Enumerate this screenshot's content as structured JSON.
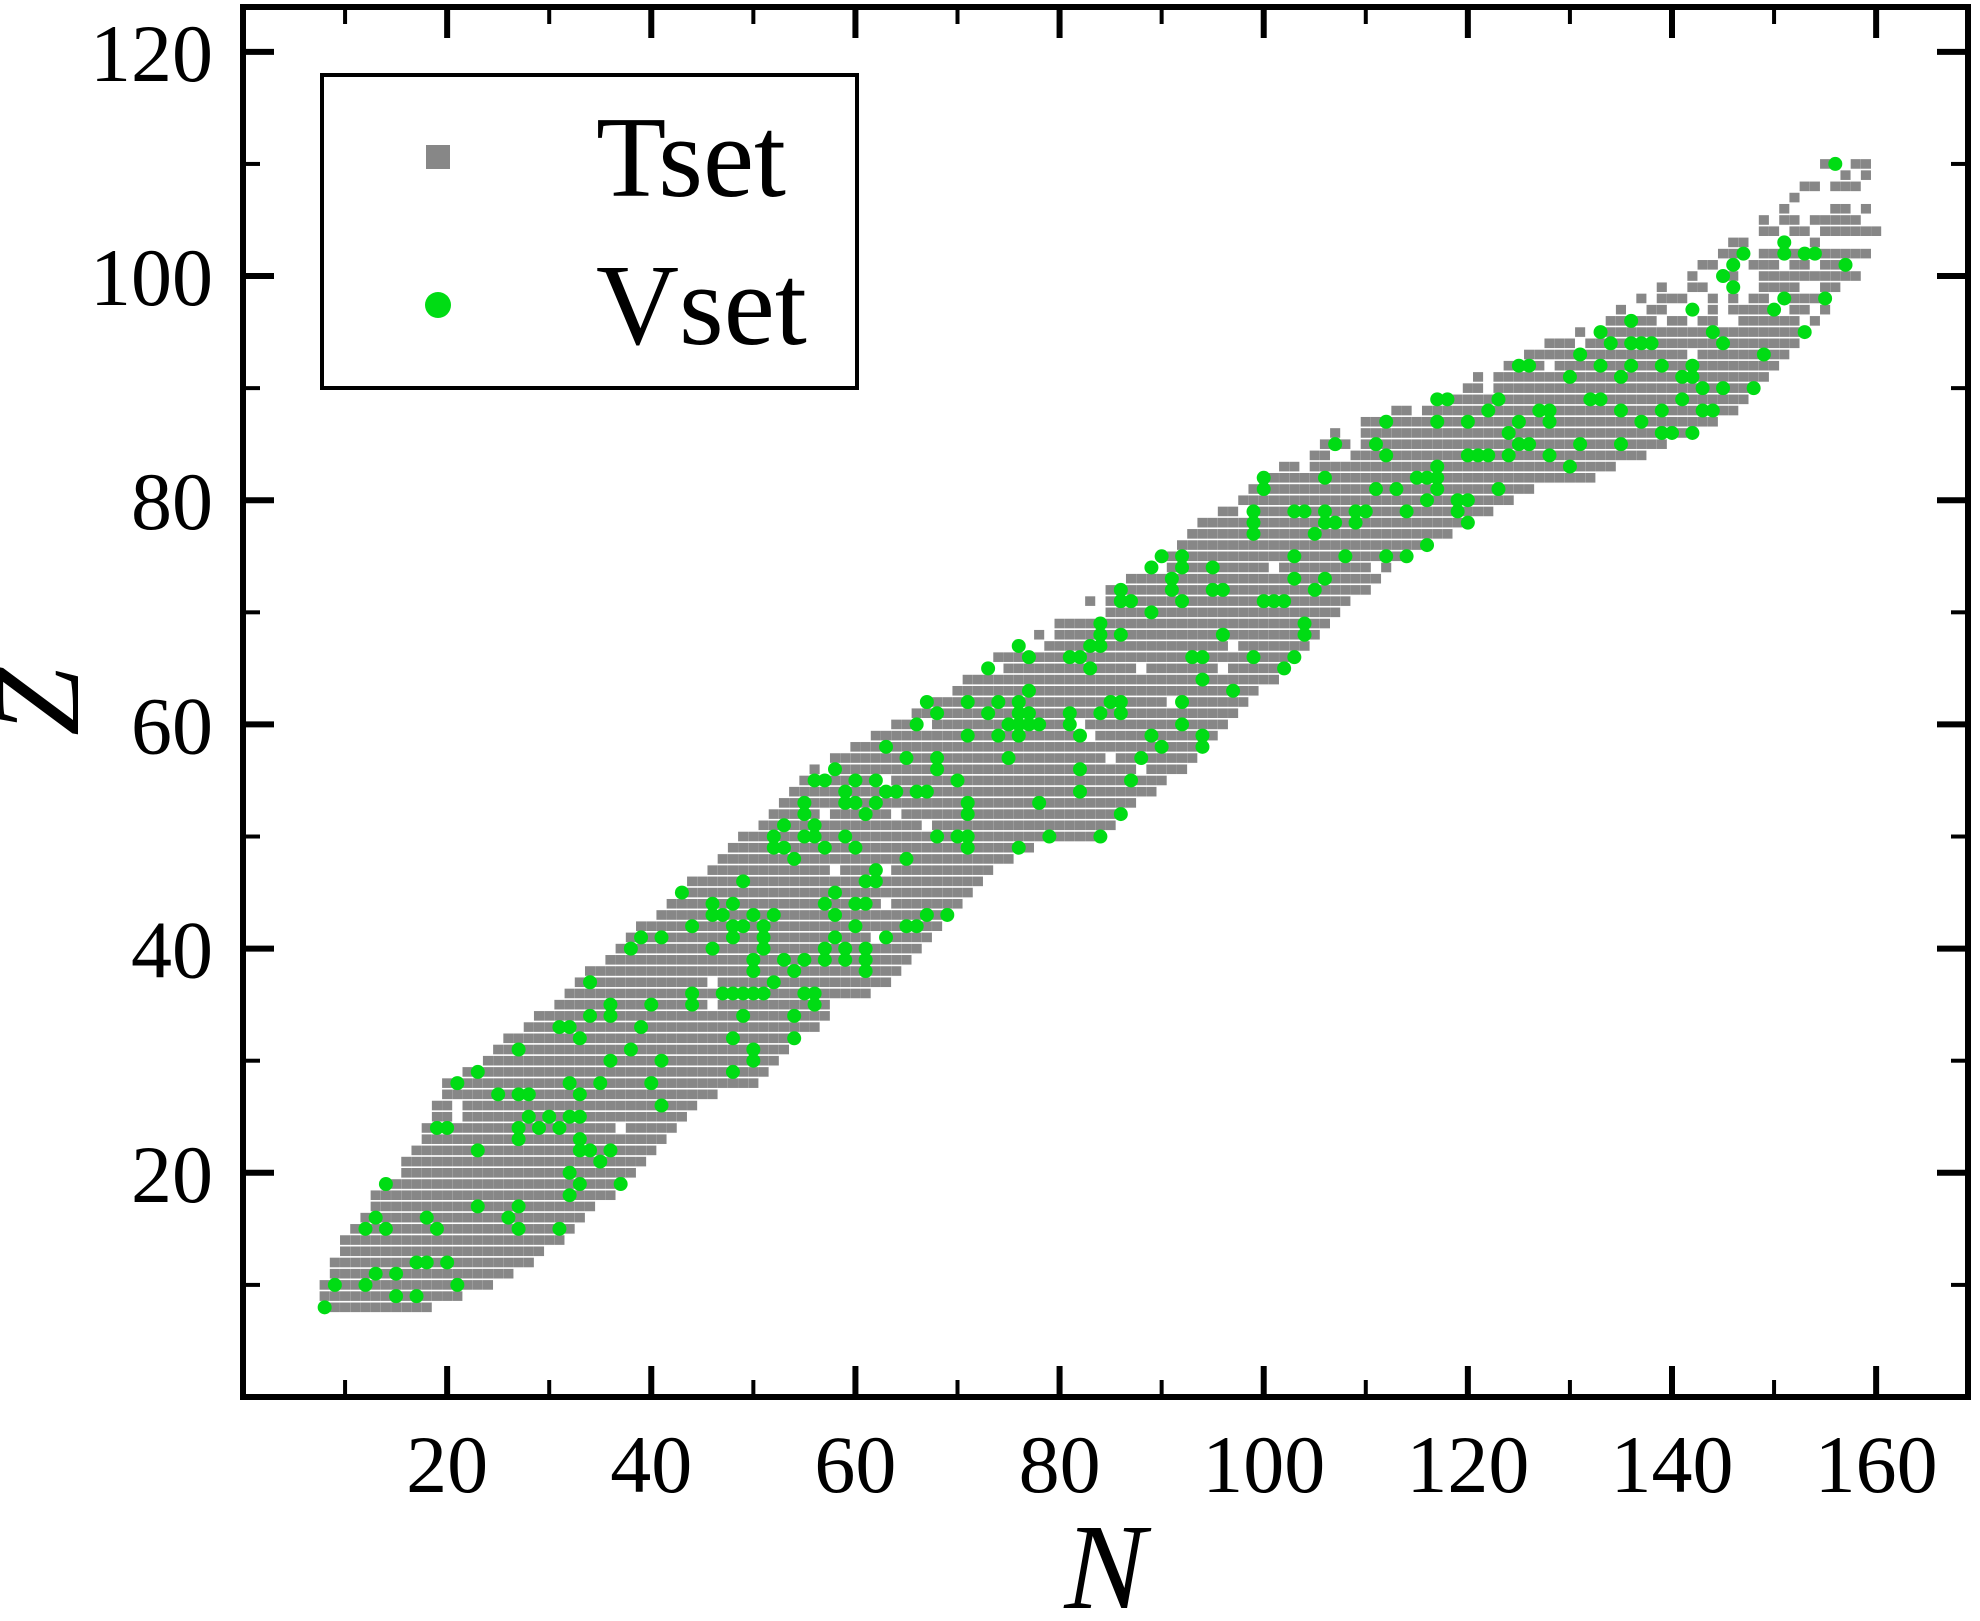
{
  "figure": {
    "background_color": "#ffffff",
    "axis_color": "#000000",
    "x_axis": {
      "label": "N",
      "major_ticks": [
        20,
        40,
        60,
        80,
        100,
        120,
        140,
        160
      ],
      "minor_step": 10,
      "range": [
        0,
        169
      ]
    },
    "y_axis": {
      "label": "Z",
      "major_ticks": [
        20,
        40,
        60,
        80,
        100,
        120
      ],
      "minor_step": 10,
      "range": [
        0,
        124
      ]
    },
    "legend": {
      "position": "top-left",
      "items": [
        {
          "label": "Tset",
          "marker": "square",
          "color": "#878787"
        },
        {
          "label": "Vset",
          "marker": "circle",
          "color": "#00dc14"
        }
      ]
    }
  },
  "chart_data": {
    "type": "scatter",
    "title": "",
    "xlabel": "N",
    "ylabel": "Z",
    "xlim": [
      0,
      169
    ],
    "ylim": [
      0,
      124
    ],
    "grid": false,
    "legend_position": "top-left",
    "series": [
      {
        "name": "Tset",
        "marker": "square",
        "color": "#878787",
        "marker_size_units": 1.0
      },
      {
        "name": "Vset",
        "marker": "circle",
        "color": "#00dc14",
        "marker_size_units": 1.37
      }
    ],
    "band_by_Z_comment": "Nuclide chart of measured nuclei: rows [Z, N_min, N_max]; every integer N in range is a nucleus, split between Tset (gray squares) and Vset (green circles).",
    "band_by_Z": [
      [
        8,
        8,
        18
      ],
      [
        9,
        8,
        21
      ],
      [
        10,
        8,
        24
      ],
      [
        11,
        9,
        26
      ],
      [
        12,
        9,
        28
      ],
      [
        13,
        10,
        29
      ],
      [
        14,
        10,
        31
      ],
      [
        15,
        11,
        32
      ],
      [
        16,
        12,
        33
      ],
      [
        17,
        13,
        34
      ],
      [
        18,
        13,
        36
      ],
      [
        19,
        14,
        37
      ],
      [
        20,
        15,
        38
      ],
      [
        21,
        16,
        39
      ],
      [
        22,
        17,
        40
      ],
      [
        23,
        18,
        41
      ],
      [
        24,
        18,
        42
      ],
      [
        25,
        19,
        43
      ],
      [
        26,
        19,
        44
      ],
      [
        27,
        20,
        46
      ],
      [
        28,
        20,
        50
      ],
      [
        29,
        22,
        51
      ],
      [
        30,
        24,
        52
      ],
      [
        31,
        25,
        53
      ],
      [
        32,
        26,
        54
      ],
      [
        33,
        28,
        56
      ],
      [
        34,
        29,
        57
      ],
      [
        35,
        31,
        58
      ],
      [
        36,
        32,
        61
      ],
      [
        37,
        33,
        63
      ],
      [
        38,
        34,
        64
      ],
      [
        39,
        36,
        65
      ],
      [
        40,
        37,
        66
      ],
      [
        41,
        38,
        67
      ],
      [
        42,
        39,
        68
      ],
      [
        43,
        41,
        69
      ],
      [
        44,
        42,
        70
      ],
      [
        45,
        43,
        71
      ],
      [
        46,
        44,
        72
      ],
      [
        47,
        46,
        73
      ],
      [
        48,
        47,
        75
      ],
      [
        49,
        48,
        77
      ],
      [
        50,
        49,
        84
      ],
      [
        51,
        51,
        85
      ],
      [
        52,
        52,
        86
      ],
      [
        53,
        53,
        87
      ],
      [
        54,
        54,
        89
      ],
      [
        55,
        55,
        90
      ],
      [
        56,
        56,
        92
      ],
      [
        57,
        58,
        93
      ],
      [
        58,
        60,
        94
      ],
      [
        59,
        62,
        95
      ],
      [
        60,
        64,
        96
      ],
      [
        61,
        66,
        97
      ],
      [
        62,
        67,
        98
      ],
      [
        63,
        69,
        99
      ],
      [
        64,
        71,
        101
      ],
      [
        65,
        73,
        102
      ],
      [
        66,
        74,
        103
      ],
      [
        67,
        76,
        104
      ],
      [
        68,
        78,
        105
      ],
      [
        69,
        80,
        106
      ],
      [
        70,
        82,
        107
      ],
      [
        71,
        83,
        108
      ],
      [
        72,
        85,
        110
      ],
      [
        73,
        87,
        111
      ],
      [
        74,
        88,
        112
      ],
      [
        75,
        90,
        114
      ],
      [
        76,
        91,
        116
      ],
      [
        77,
        93,
        118
      ],
      [
        78,
        94,
        120
      ],
      [
        79,
        96,
        122
      ],
      [
        80,
        97,
        124
      ],
      [
        81,
        99,
        126
      ],
      [
        82,
        100,
        132
      ],
      [
        83,
        102,
        134
      ],
      [
        84,
        104,
        137
      ],
      [
        85,
        106,
        139
      ],
      [
        86,
        107,
        142
      ],
      [
        87,
        110,
        144
      ],
      [
        88,
        112,
        146
      ],
      [
        89,
        115,
        147
      ],
      [
        90,
        118,
        148
      ],
      [
        91,
        121,
        149
      ],
      [
        92,
        124,
        150
      ],
      [
        93,
        126,
        151
      ],
      [
        94,
        128,
        152
      ],
      [
        95,
        131,
        153
      ],
      [
        96,
        133,
        154
      ],
      [
        97,
        135,
        155
      ],
      [
        98,
        137,
        156
      ],
      [
        99,
        139,
        157
      ],
      [
        100,
        141,
        158
      ],
      [
        101,
        143,
        158
      ],
      [
        102,
        145,
        159
      ],
      [
        103,
        146,
        159
      ],
      [
        104,
        148,
        160
      ],
      [
        105,
        149,
        159
      ],
      [
        106,
        151,
        160
      ],
      [
        107,
        152,
        158
      ],
      [
        108,
        153,
        158
      ],
      [
        109,
        154,
        159
      ],
      [
        110,
        155,
        160
      ]
    ],
    "sampling": {
      "seed": 7,
      "vset_fraction": 0.135,
      "interior_hole_fraction": 0.008,
      "edge_hole_fraction": 0.18,
      "heavy_edge_hole_fraction": 0.3,
      "tip_sparse_from_Z": 96,
      "tip_drop_fraction": 0.3,
      "tip2_sparse_from_Z": 103,
      "tip2_drop_fraction": 0.45
    }
  }
}
